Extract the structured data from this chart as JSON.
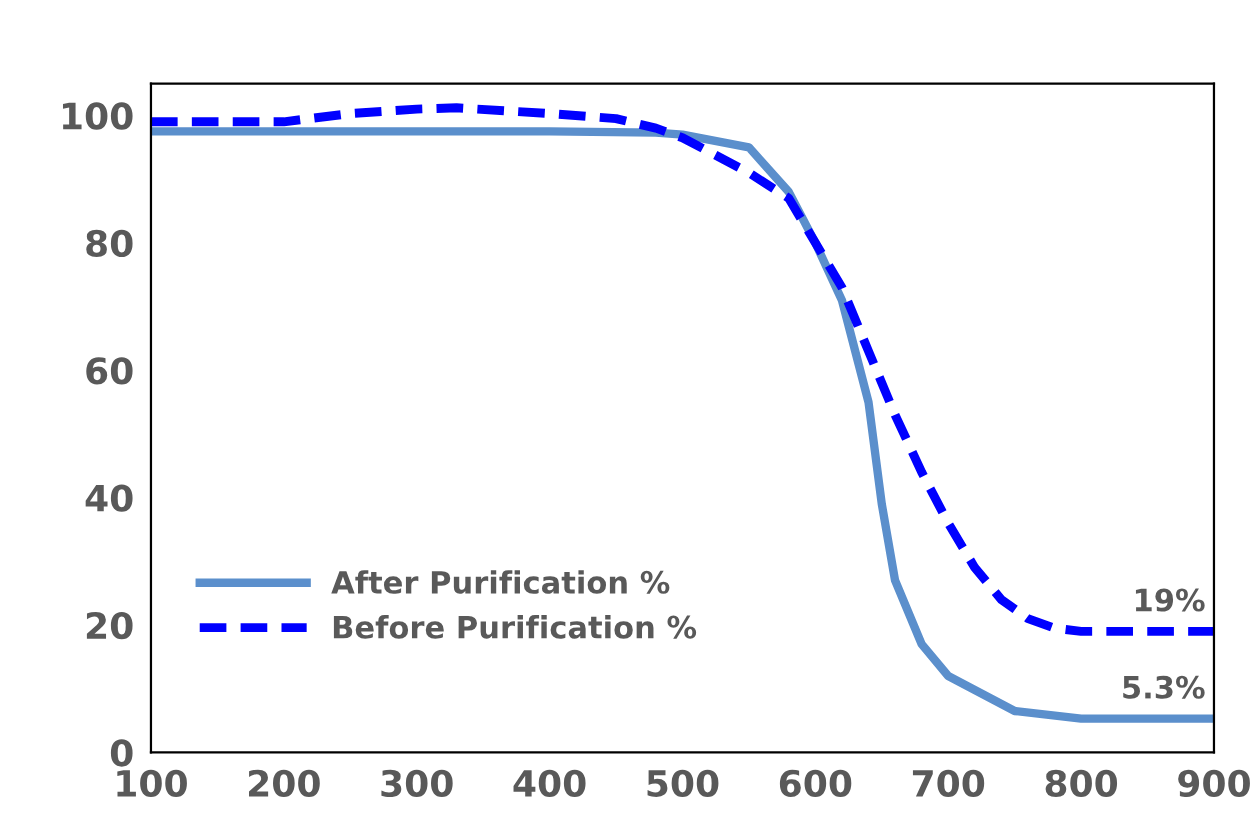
{
  "chart_data": {
    "type": "line",
    "xlim": [
      100,
      900
    ],
    "ylim": [
      0,
      105
    ],
    "xticks": [
      100,
      200,
      300,
      400,
      500,
      600,
      700,
      800,
      900
    ],
    "yticks": [
      0,
      20,
      40,
      60,
      80,
      100
    ],
    "grid": false,
    "legend": "bottom left",
    "series": [
      {
        "name": "After Purification %",
        "color": "#5b8fcc",
        "line_style": "solid",
        "x": [
          100,
          200,
          300,
          400,
          480,
          500,
          550,
          580,
          600,
          620,
          640,
          650,
          660,
          680,
          700,
          750,
          800,
          900
        ],
        "values": [
          97.5,
          97.5,
          97.5,
          97.5,
          97.3,
          97,
          95,
          88,
          80,
          71,
          55,
          39,
          27,
          17,
          12,
          6.5,
          5.3,
          5.3
        ]
      },
      {
        "name": "Before Purification %",
        "color": "#0000ff",
        "line_style": "dashed",
        "x": [
          100,
          200,
          250,
          300,
          330,
          400,
          450,
          480,
          500,
          550,
          580,
          600,
          620,
          640,
          660,
          680,
          700,
          720,
          740,
          760,
          780,
          800,
          900
        ],
        "values": [
          99,
          99,
          100.3,
          101,
          101.2,
          100.3,
          99.5,
          98,
          96.5,
          91,
          87,
          80,
          73,
          63,
          53,
          44,
          36,
          29,
          24,
          21,
          19.5,
          19,
          19
        ]
      }
    ],
    "annotations": [
      {
        "text": "19%",
        "x": 900,
        "y": 19
      },
      {
        "text": "5.3%",
        "x": 900,
        "y": 5.3
      }
    ]
  }
}
